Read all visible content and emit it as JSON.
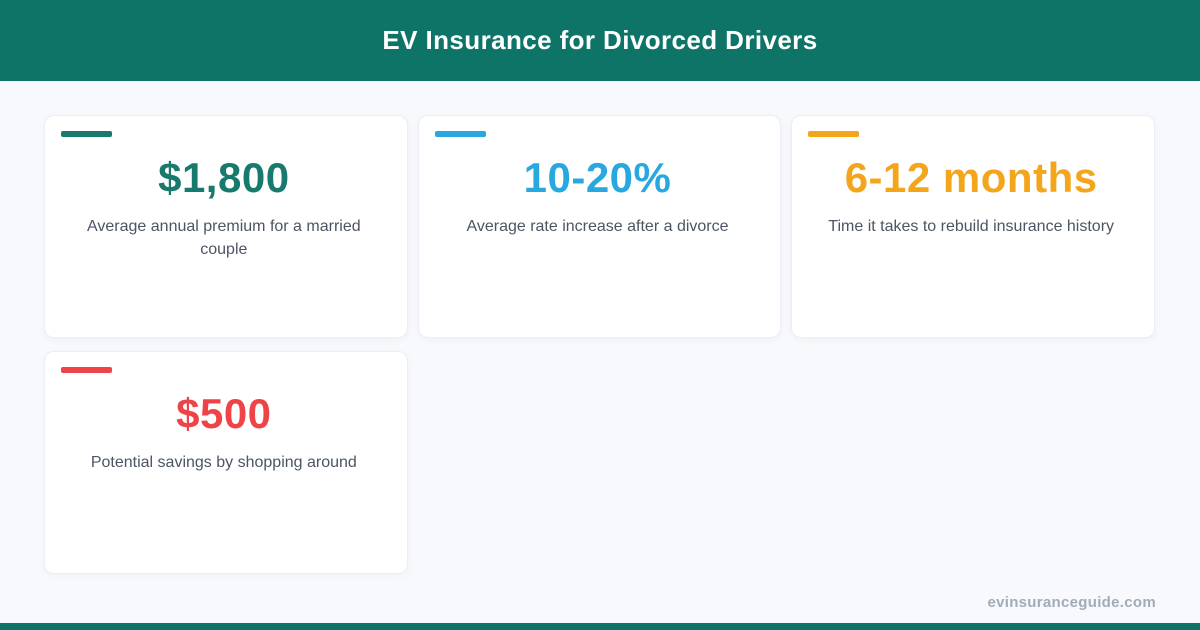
{
  "header": {
    "title": "EV Insurance for Divorced Drivers"
  },
  "theme": {
    "header_bg": "#0E7467",
    "bottom_bar_color": "#0E7467",
    "page_bg": "#F7F9FC",
    "card_bg": "#FFFFFF",
    "card_border": "#EAEEF5",
    "label_color": "#4C5564",
    "footer_text_color": "#A3ABB8"
  },
  "cards": [
    {
      "value": "$1,800",
      "label": "Average annual premium for a married couple",
      "color": "#177A6C"
    },
    {
      "value": "10-20%",
      "label": "Average rate increase after a divorce",
      "color": "#29A8E0"
    },
    {
      "value": "6-12 months",
      "label": "Time it takes to rebuild insurance history",
      "color": "#F3A61C"
    },
    {
      "value": "$500",
      "label": "Potential savings by shopping around",
      "color": "#EE4448"
    }
  ],
  "footer": {
    "site": "evinsuranceguide.com"
  }
}
